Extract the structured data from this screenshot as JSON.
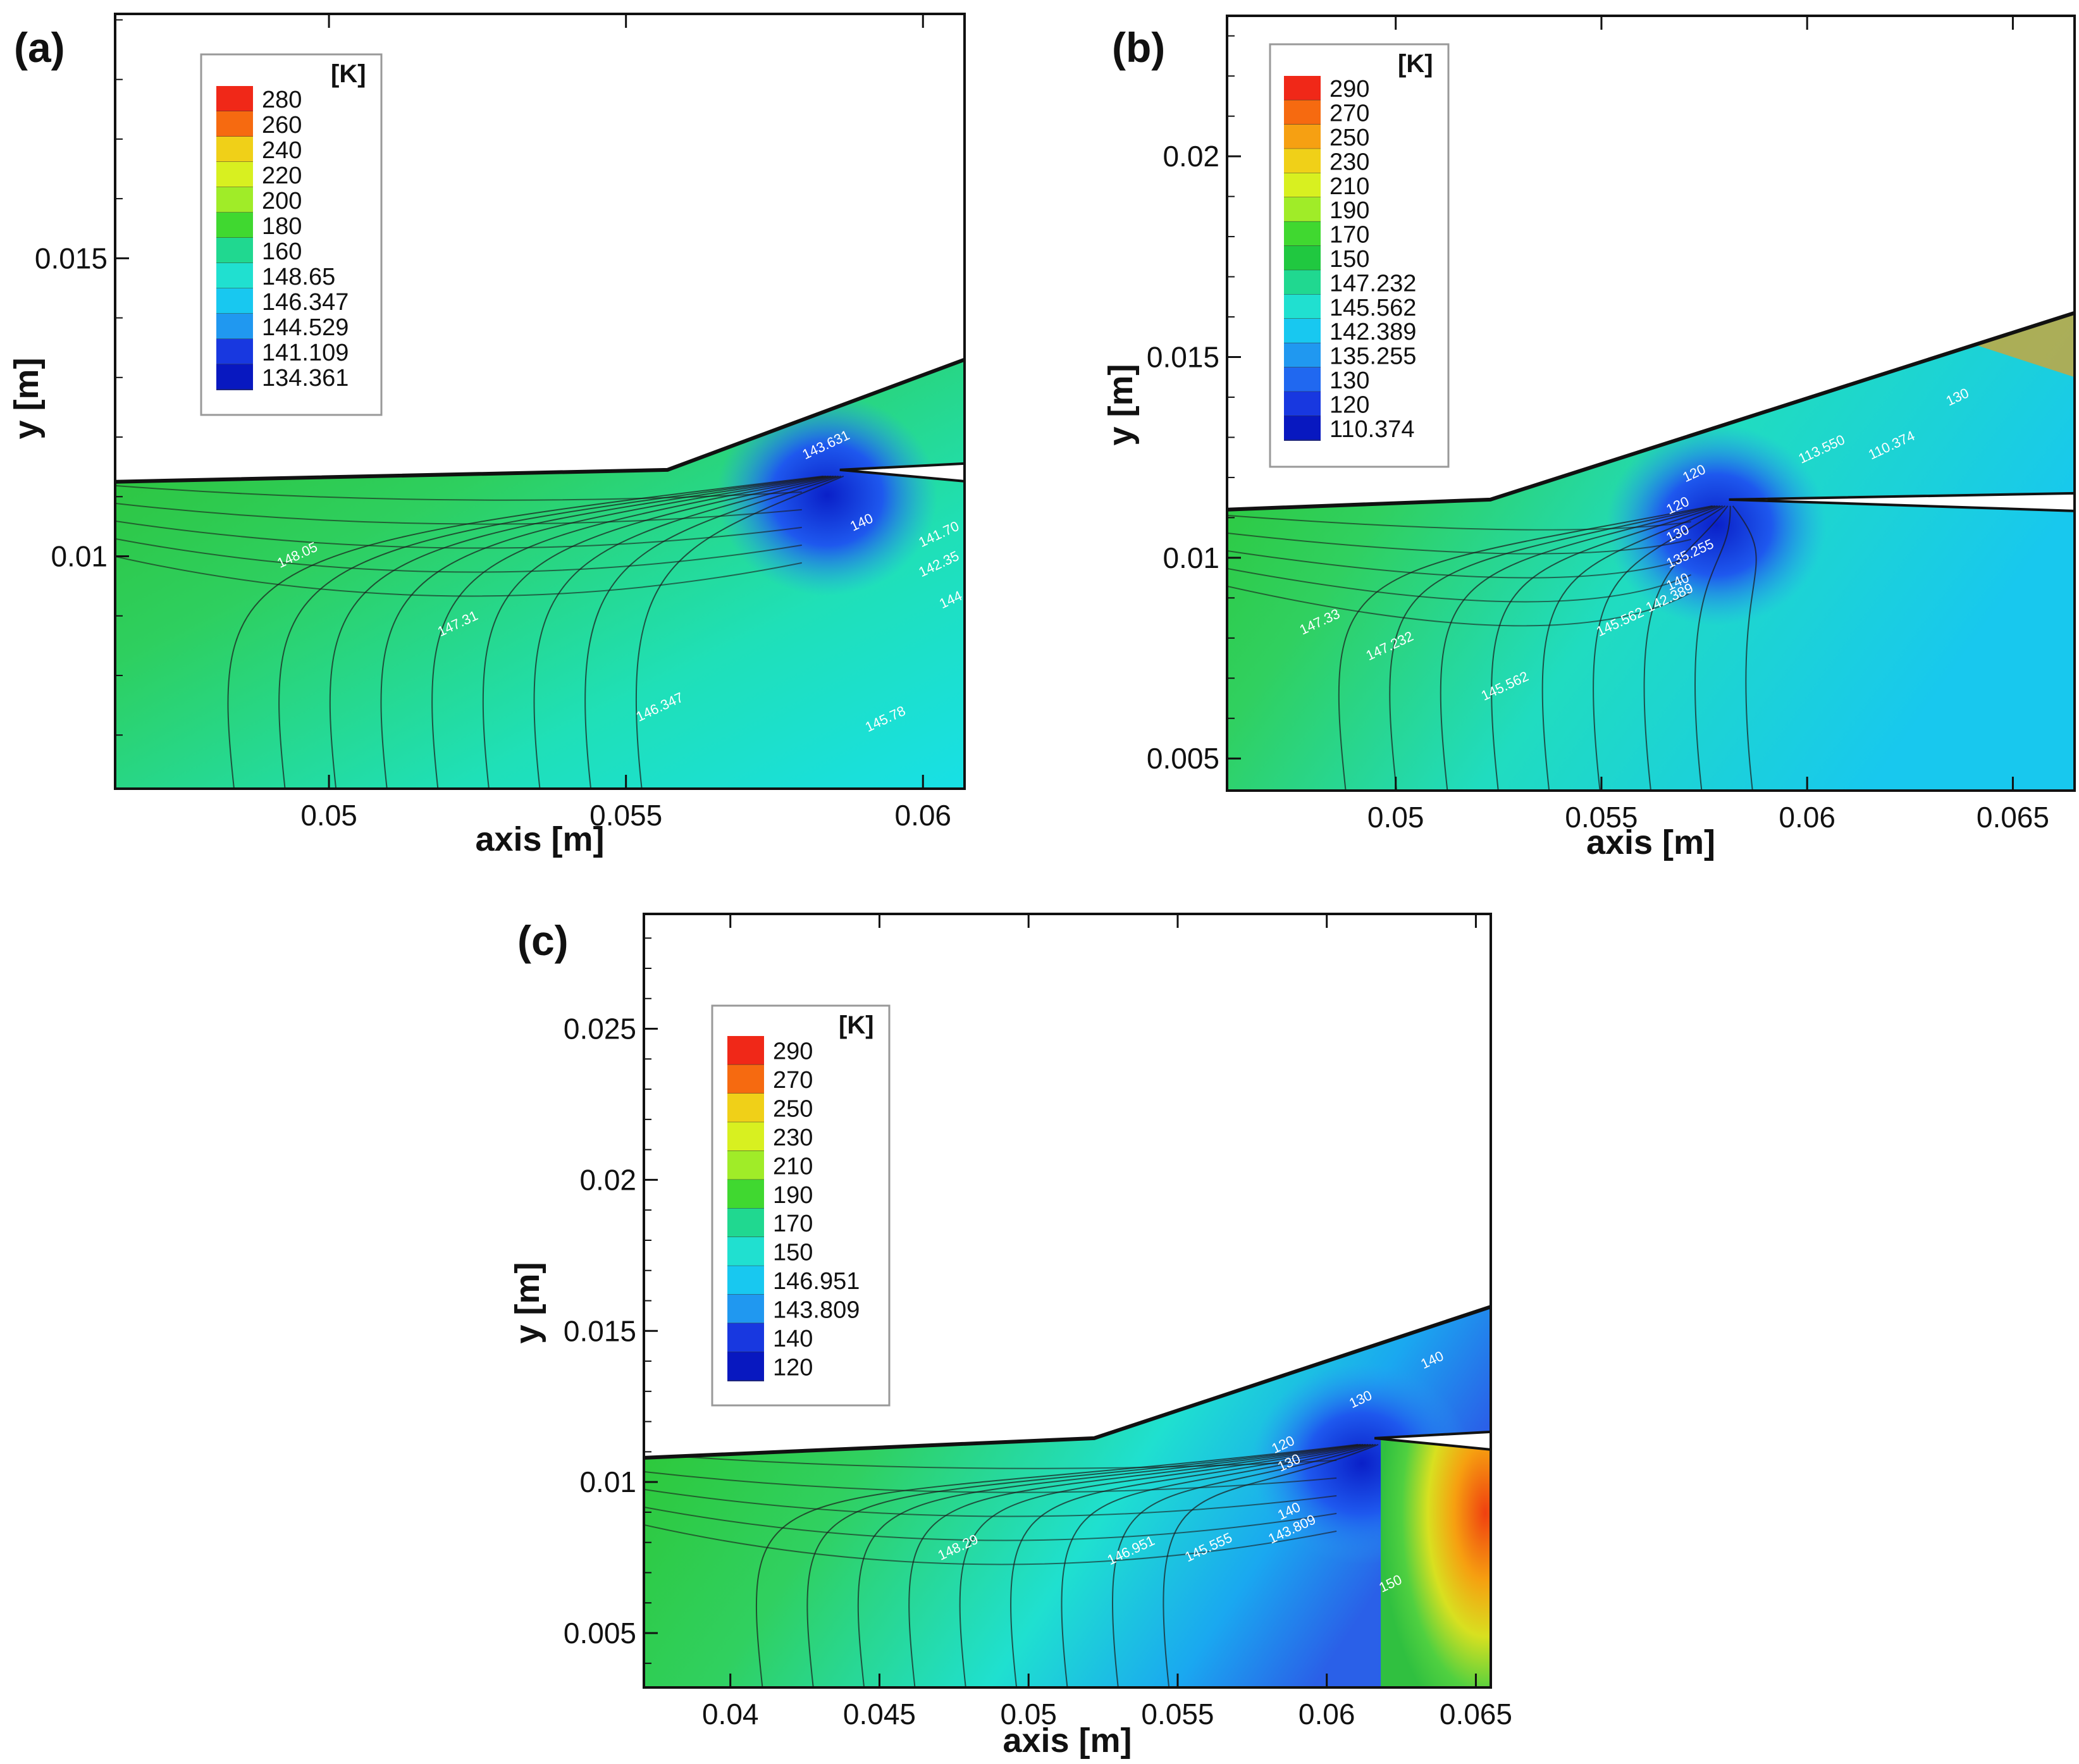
{
  "chart_data": [
    {
      "type": "heatmap",
      "panel": "(a)",
      "xlabel": "axis [m]",
      "ylabel": "y [m]",
      "xlim": [
        0.0464,
        0.0607
      ],
      "ylim": [
        0.0061,
        0.0191
      ],
      "xticks": [
        0.05,
        0.055,
        0.06
      ],
      "xtick_labels": [
        "0.05",
        "0.055",
        "0.06"
      ],
      "yticks": [
        0.01,
        0.015
      ],
      "ytick_labels": [
        "0.01",
        "0.015"
      ],
      "legend": {
        "unit": "[K]",
        "levels": [
          "280",
          "260",
          "240",
          "220",
          "200",
          "180",
          "160",
          "148.65",
          "146.347",
          "144.529",
          "141.109",
          "134.361"
        ]
      },
      "wall": [
        [
          0.0464,
          0.01125
        ],
        [
          0.0557,
          0.01145
        ],
        [
          0.0607,
          0.0133
        ]
      ],
      "lip_y": 0.01145,
      "lip_x": 0.0586,
      "contour_labels": [
        {
          "text": "148.05",
          "x": 0.0495,
          "y": 0.00995
        },
        {
          "text": "147.31",
          "x": 0.0522,
          "y": 0.0088
        },
        {
          "text": "146.347",
          "x": 0.0556,
          "y": 0.0074
        },
        {
          "text": "143.631",
          "x": 0.0584,
          "y": 0.0118
        },
        {
          "text": "140",
          "x": 0.059,
          "y": 0.0105
        },
        {
          "text": "141.70",
          "x": 0.0603,
          "y": 0.0103
        },
        {
          "text": "142.35",
          "x": 0.0603,
          "y": 0.0098
        },
        {
          "text": "145.78",
          "x": 0.0594,
          "y": 0.0072
        },
        {
          "text": "144",
          "x": 0.0605,
          "y": 0.0092
        }
      ]
    },
    {
      "type": "heatmap",
      "panel": "(b)",
      "xlabel": "axis [m]",
      "ylabel": "y [m]",
      "xlim": [
        0.0459,
        0.0665
      ],
      "ylim": [
        0.0042,
        0.0235
      ],
      "xticks": [
        0.05,
        0.055,
        0.06,
        0.065
      ],
      "xtick_labels": [
        "0.05",
        "0.055",
        "0.06",
        "0.065"
      ],
      "yticks": [
        0.005,
        0.01,
        0.015,
        0.02
      ],
      "ytick_labels": [
        "0.005",
        "0.01",
        "0.015",
        "0.02"
      ],
      "legend": {
        "unit": "[K]",
        "levels": [
          "290",
          "270",
          "250",
          "230",
          "210",
          "190",
          "170",
          "150",
          "147.232",
          "145.562",
          "142.389",
          "135.255",
          "130",
          "120",
          "110.374"
        ]
      },
      "wall": [
        [
          0.0459,
          0.0112
        ],
        [
          0.0523,
          0.01145
        ],
        [
          0.0665,
          0.0161
        ]
      ],
      "lip_y": 0.01145,
      "lip_x": 0.0581,
      "contour_labels": [
        {
          "text": "147.33",
          "x": 0.0482,
          "y": 0.0083
        },
        {
          "text": "147.232",
          "x": 0.0499,
          "y": 0.0077
        },
        {
          "text": "145.562",
          "x": 0.0527,
          "y": 0.0067
        },
        {
          "text": "145.562",
          "x": 0.0555,
          "y": 0.0083
        },
        {
          "text": "142.389",
          "x": 0.0567,
          "y": 0.0089
        },
        {
          "text": "140",
          "x": 0.0569,
          "y": 0.0093
        },
        {
          "text": "135.255",
          "x": 0.0572,
          "y": 0.01
        },
        {
          "text": "130",
          "x": 0.0569,
          "y": 0.0105
        },
        {
          "text": "120",
          "x": 0.0569,
          "y": 0.0112
        },
        {
          "text": "120",
          "x": 0.0573,
          "y": 0.012
        },
        {
          "text": "113.550",
          "x": 0.0604,
          "y": 0.0126
        },
        {
          "text": "110.374",
          "x": 0.0621,
          "y": 0.0127
        },
        {
          "text": "130",
          "x": 0.0637,
          "y": 0.0139
        }
      ]
    },
    {
      "type": "heatmap",
      "panel": "(c)",
      "xlabel": "axis [m]",
      "ylabel": "y [m]",
      "xlim": [
        0.0371,
        0.0655
      ],
      "ylim": [
        0.0032,
        0.0288
      ],
      "xticks": [
        0.04,
        0.045,
        0.05,
        0.055,
        0.06,
        0.065
      ],
      "xtick_labels": [
        "0.04",
        "0.045",
        "0.05",
        "0.055",
        "0.06",
        "0.065"
      ],
      "yticks": [
        0.005,
        0.01,
        0.015,
        0.02,
        0.025
      ],
      "ytick_labels": [
        "0.005",
        "0.01",
        "0.015",
        "0.02",
        "0.025"
      ],
      "legend": {
        "unit": "[K]",
        "levels": [
          "290",
          "270",
          "250",
          "230",
          "210",
          "190",
          "170",
          "150",
          "146.951",
          "143.809",
          "140",
          "120"
        ]
      },
      "wall": [
        [
          0.0371,
          0.0108
        ],
        [
          0.0522,
          0.01145
        ],
        [
          0.0655,
          0.0158
        ]
      ],
      "lip_y": 0.01145,
      "lip_x": 0.0616,
      "contour_labels": [
        {
          "text": "148.29",
          "x": 0.0477,
          "y": 0.0077
        },
        {
          "text": "146.951",
          "x": 0.0535,
          "y": 0.0076
        },
        {
          "text": "145.555",
          "x": 0.0561,
          "y": 0.0077
        },
        {
          "text": "143.809",
          "x": 0.0589,
          "y": 0.0083
        },
        {
          "text": "140",
          "x": 0.0588,
          "y": 0.0089
        },
        {
          "text": "130",
          "x": 0.0588,
          "y": 0.0105
        },
        {
          "text": "120",
          "x": 0.0586,
          "y": 0.0111
        },
        {
          "text": "130",
          "x": 0.0612,
          "y": 0.0126
        },
        {
          "text": "140",
          "x": 0.0636,
          "y": 0.0139
        },
        {
          "text": "150",
          "x": 0.0622,
          "y": 0.0065
        }
      ]
    }
  ]
}
